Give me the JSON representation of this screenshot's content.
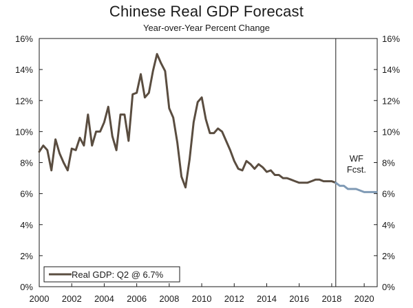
{
  "chart_data": {
    "type": "line",
    "title": "Chinese Real GDP Forecast",
    "subtitle": "Year-over-Year Percent Change",
    "xlabel": "",
    "ylabel": "",
    "xlim": [
      2000,
      2020.8
    ],
    "ylim": [
      0,
      16
    ],
    "x_ticks": [
      "2000",
      "2002",
      "2004",
      "2006",
      "2008",
      "2010",
      "2012",
      "2014",
      "2016",
      "2018",
      "2020"
    ],
    "y_ticks": [
      "0%",
      "2%",
      "4%",
      "6%",
      "8%",
      "10%",
      "12%",
      "14%",
      "16%"
    ],
    "forecast_start": 2018.25,
    "forecast_label": [
      "WF",
      "Fcst."
    ],
    "legend": {
      "label": "Real GDP: Q2 @ 6.7%",
      "placement": "bottom-left"
    },
    "colors": {
      "actual": "#5a4d40",
      "forecast": "#7f9ab5",
      "divider": "#1a1a1a"
    },
    "series": [
      {
        "name": "Real GDP (actual)",
        "x": [
          2000.0,
          2000.25,
          2000.5,
          2000.75,
          2001.0,
          2001.25,
          2001.5,
          2001.75,
          2002.0,
          2002.25,
          2002.5,
          2002.75,
          2003.0,
          2003.25,
          2003.5,
          2003.75,
          2004.0,
          2004.25,
          2004.5,
          2004.75,
          2005.0,
          2005.25,
          2005.5,
          2005.75,
          2006.0,
          2006.25,
          2006.5,
          2006.75,
          2007.0,
          2007.25,
          2007.5,
          2007.75,
          2008.0,
          2008.25,
          2008.5,
          2008.75,
          2009.0,
          2009.25,
          2009.5,
          2009.75,
          2010.0,
          2010.25,
          2010.5,
          2010.75,
          2011.0,
          2011.25,
          2011.5,
          2011.75,
          2012.0,
          2012.25,
          2012.5,
          2012.75,
          2013.0,
          2013.25,
          2013.5,
          2013.75,
          2014.0,
          2014.25,
          2014.5,
          2014.75,
          2015.0,
          2015.25,
          2015.5,
          2015.75,
          2016.0,
          2016.25,
          2016.5,
          2016.75,
          2017.0,
          2017.25,
          2017.5,
          2017.75,
          2018.0,
          2018.25
        ],
        "values": [
          8.7,
          9.1,
          8.8,
          7.5,
          9.5,
          8.6,
          8.0,
          7.5,
          8.9,
          8.8,
          9.6,
          9.1,
          11.1,
          9.1,
          10.0,
          10.0,
          10.6,
          11.6,
          9.7,
          8.8,
          11.1,
          11.1,
          9.4,
          12.4,
          12.5,
          13.7,
          12.2,
          12.5,
          13.9,
          15.0,
          14.4,
          13.9,
          11.5,
          10.9,
          9.3,
          7.1,
          6.4,
          8.2,
          10.6,
          11.9,
          12.2,
          10.8,
          9.9,
          9.9,
          10.2,
          10.0,
          9.4,
          8.8,
          8.1,
          7.6,
          7.5,
          8.1,
          7.9,
          7.6,
          7.9,
          7.7,
          7.4,
          7.5,
          7.2,
          7.2,
          7.0,
          7.0,
          6.9,
          6.8,
          6.7,
          6.7,
          6.7,
          6.8,
          6.9,
          6.9,
          6.8,
          6.8,
          6.8,
          6.7
        ]
      },
      {
        "name": "WF Forecast",
        "x": [
          2018.25,
          2018.5,
          2018.75,
          2019.0,
          2019.25,
          2019.5,
          2019.75,
          2020.0,
          2020.25,
          2020.5,
          2020.75
        ],
        "values": [
          6.7,
          6.5,
          6.5,
          6.3,
          6.3,
          6.3,
          6.2,
          6.1,
          6.1,
          6.1,
          6.1
        ]
      }
    ]
  }
}
